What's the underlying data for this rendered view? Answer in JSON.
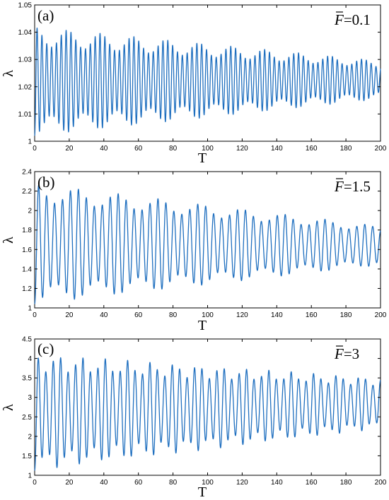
{
  "colors": {
    "series": "#1f6fbf",
    "axis": "#000000"
  },
  "chart_data": [
    {
      "type": "line",
      "panel_label": "(a)",
      "annotation": {
        "symbol": "F",
        "value": "=0.1"
      },
      "xlabel": "T",
      "ylabel": "λ",
      "xlim": [
        0,
        200
      ],
      "ylim": [
        1,
        1.05
      ],
      "xticks": [
        0,
        20,
        40,
        60,
        80,
        100,
        120,
        140,
        160,
        180,
        200
      ],
      "yticks": [
        1,
        1.01,
        1.02,
        1.03,
        1.04,
        1.05
      ],
      "ytick_labels": [
        "1",
        "1.01",
        "1.02",
        "1.03",
        "1.04",
        "1.05"
      ],
      "series": [
        {
          "oscillation": {
            "period": 2.8,
            "mean_start": 1.022,
            "mean_end": 1.0225,
            "amp_start": 0.02,
            "amp_end": 0.007,
            "beat_period": 19,
            "beat_depth": 0.35
          }
        }
      ]
    },
    {
      "type": "line",
      "panel_label": "(b)",
      "annotation": {
        "symbol": "F",
        "value": "=1.5"
      },
      "xlabel": "T",
      "ylabel": "λ",
      "xlim": [
        0,
        200
      ],
      "ylim": [
        1,
        2.4
      ],
      "xticks": [
        0,
        20,
        40,
        60,
        80,
        100,
        120,
        140,
        160,
        180,
        200
      ],
      "yticks": [
        1,
        1.2,
        1.4,
        1.6,
        1.8,
        2,
        2.2,
        2.4
      ],
      "ytick_labels": [
        "1",
        "1.2",
        "1.4",
        "1.6",
        "1.8",
        "2",
        "2.2",
        "2.4"
      ],
      "series": [
        {
          "oscillation": {
            "period": 4.6,
            "mean_start": 1.66,
            "mean_end": 1.64,
            "amp_start": 0.62,
            "amp_end": 0.2,
            "beat_period": 24,
            "beat_depth": 0.3
          }
        }
      ]
    },
    {
      "type": "line",
      "panel_label": "(c)",
      "annotation": {
        "symbol": "F",
        "value": "=3"
      },
      "xlabel": "T",
      "ylabel": "λ",
      "xlim": [
        0,
        200
      ],
      "ylim": [
        1,
        4.5
      ],
      "xticks": [
        0,
        20,
        40,
        60,
        80,
        100,
        120,
        140,
        160,
        180,
        200
      ],
      "yticks": [
        1,
        1.5,
        2,
        2.5,
        3,
        3.5,
        4,
        4.5
      ],
      "ytick_labels": [
        "1",
        "1.5",
        "2",
        "2.5",
        "3",
        "3.5",
        "4",
        "4.5"
      ],
      "series": [
        {
          "oscillation": {
            "period": 4.3,
            "mean_start": 2.62,
            "mean_end": 2.85,
            "amp_start": 1.5,
            "amp_end": 0.65,
            "beat_period": 13.5,
            "beat_depth": 0.3
          }
        }
      ]
    }
  ]
}
